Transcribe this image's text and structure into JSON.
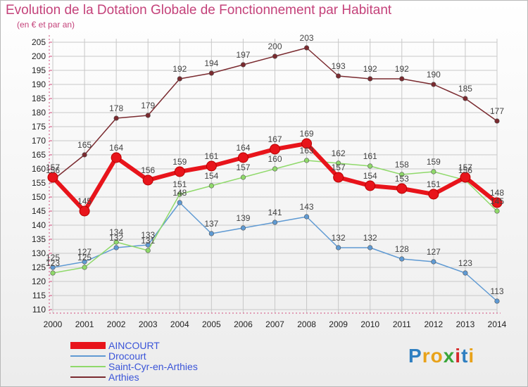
{
  "header": {
    "title": "Evolution de la Dotation Globale de Fonctionnement par Habitant",
    "subtitle": "(en € et par an)"
  },
  "brand": {
    "logo_text": "Proxiti"
  },
  "colors": {
    "text_accent": "#c4427a",
    "legend_text": "#3a54d8",
    "grid": "#c8c8c8",
    "axis_tick": "#d24a7a"
  },
  "chart_data": {
    "type": "line",
    "x": [
      "2000",
      "2001",
      "2002",
      "2003",
      "2004",
      "2005",
      "2006",
      "2007",
      "2008",
      "2009",
      "2010",
      "2011",
      "2012",
      "2013",
      "2014"
    ],
    "ylim": [
      110,
      205
    ],
    "yticks": [
      110,
      115,
      120,
      125,
      130,
      135,
      140,
      145,
      150,
      155,
      160,
      165,
      170,
      175,
      180,
      185,
      190,
      195,
      200,
      205
    ],
    "grid": true,
    "legend_placement": "bottom-left",
    "series": [
      {
        "name": "AINCOURT",
        "color": "#e8141b",
        "values": [
          157,
          145,
          164,
          156,
          159,
          161,
          164,
          167,
          169,
          157,
          154,
          153,
          151,
          157,
          148
        ]
      },
      {
        "name": "Drocourt",
        "color": "#5f9ad3",
        "values": [
          125,
          127,
          132,
          133,
          148,
          137,
          139,
          141,
          143,
          132,
          132,
          128,
          127,
          123,
          113
        ]
      },
      {
        "name": "Saint-Cyr-en-Arthies",
        "color": "#8fd96a",
        "values": [
          123,
          125,
          134,
          131,
          151,
          154,
          157,
          160,
          163,
          162,
          161,
          158,
          159,
          156,
          145
        ]
      },
      {
        "name": "Arthies",
        "color": "#7a2a2f",
        "values": [
          156,
          165,
          178,
          179,
          192,
          194,
          197,
          200,
          203,
          193,
          192,
          192,
          190,
          185,
          177
        ]
      }
    ],
    "data_labels": {
      "AINCOURT": [
        "157",
        "145",
        "164",
        "156",
        "159",
        "161",
        "164",
        "167",
        "169",
        "157",
        "154",
        "153",
        "151",
        "157",
        "148"
      ],
      "Drocourt": [
        "125",
        "127",
        "132",
        "133",
        "148",
        "137",
        "139",
        "141",
        "143",
        "132",
        "132",
        "128",
        "127",
        "123",
        "113"
      ],
      "Saint-Cyr-en-Arthies": [
        "123",
        "125",
        "134",
        "131",
        "151",
        "154",
        "157",
        "160",
        "163",
        "162",
        "161",
        "158",
        "159",
        "156",
        "145"
      ],
      "Arthies": [
        "156",
        "165",
        "178",
        "179",
        "192",
        "194",
        "197",
        "200",
        "203",
        "193",
        "192",
        "192",
        "190",
        "185",
        "177"
      ]
    }
  }
}
